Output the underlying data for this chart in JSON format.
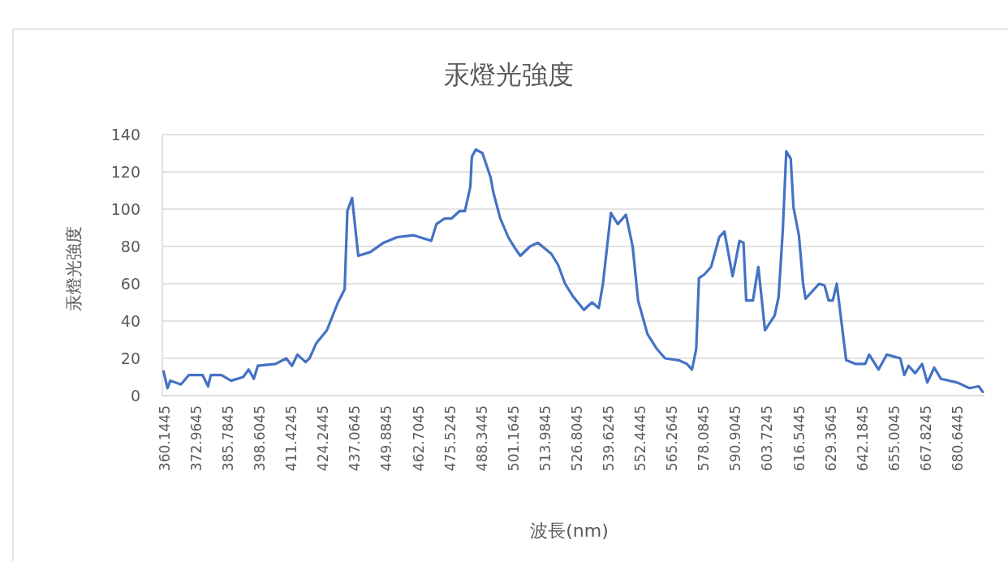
{
  "chart_data": {
    "type": "line",
    "title": "汞燈光強度",
    "xlabel": "波長(nm)",
    "ylabel": "汞燈光強度",
    "xlim": [
      359.2,
      691.5
    ],
    "xticks": [
      360.1445,
      372.9645,
      385.7845,
      398.6045,
      411.4245,
      424.2445,
      437.0645,
      449.8845,
      462.7045,
      475.5245,
      488.3445,
      501.1645,
      513.9845,
      526.8045,
      539.6245,
      552.4445,
      565.2645,
      578.0845,
      590.9045,
      603.7245,
      616.5445,
      629.3645,
      642.1845,
      655.0045,
      667.8245,
      680.6445
    ],
    "ylim": [
      0,
      140
    ],
    "yticks": [
      0,
      20,
      40,
      60,
      80,
      100,
      120,
      140
    ],
    "grid": "y",
    "series": [
      {
        "color": "#4472c4",
        "x": [
          359.7,
          361.3,
          362.4,
          366.7,
          369.9,
          375.5,
          377.7,
          378.8,
          383.1,
          387.0,
          391.9,
          394.1,
          396.2,
          397.8,
          405.0,
          409.3,
          411.6,
          413.8,
          417.1,
          418.7,
          421.4,
          425.7,
          430.2,
          432.9,
          434.0,
          435.9,
          438.4,
          443.3,
          448.6,
          454.2,
          460.8,
          467.9,
          470.0,
          473.3,
          476.1,
          479.4,
          481.5,
          483.7,
          484.3,
          485.9,
          488.6,
          491.9,
          493.0,
          495.8,
          499.0,
          501.8,
          503.9,
          507.8,
          511.0,
          516.5,
          519.2,
          522.0,
          525.3,
          529.6,
          532.9,
          535.6,
          537.3,
          540.5,
          543.3,
          546.6,
          549.3,
          551.5,
          555.3,
          559.1,
          562.4,
          567.9,
          571.2,
          573.3,
          575.0,
          576.1,
          578.3,
          581.0,
          584.3,
          586.4,
          589.7,
          592.5,
          594.1,
          595.2,
          597.9,
          600.1,
          602.8,
          606.7,
          608.3,
          610.0,
          611.4,
          613.2,
          614.3,
          616.5,
          618.2,
          619.2,
          624.7,
          626.9,
          628.5,
          630.2,
          631.8,
          635.6,
          639.5,
          643.3,
          644.9,
          648.7,
          652.0,
          657.5,
          659.1,
          660.8,
          663.5,
          666.3,
          668.4,
          671.2,
          673.9,
          680.5,
          685.4,
          689.2,
          690.8
        ],
        "values": [
          13,
          4,
          8,
          6,
          11,
          11,
          5,
          11,
          11,
          8,
          10,
          14,
          9,
          16,
          17,
          20,
          16,
          22,
          18,
          20,
          28,
          35,
          50,
          57,
          99,
          106,
          75,
          77,
          82,
          85,
          86,
          83,
          92,
          95,
          95,
          99,
          99,
          112,
          128,
          132,
          130,
          117,
          109,
          95,
          85,
          79,
          75,
          80,
          82,
          76,
          70,
          60,
          53,
          46,
          50,
          47,
          60,
          98,
          92,
          97,
          80,
          51,
          33,
          25,
          20,
          19,
          17,
          14,
          25,
          63,
          65,
          69,
          85,
          88,
          64,
          83,
          82,
          51,
          51,
          69,
          35,
          43,
          53,
          89,
          131,
          127,
          101,
          86,
          60,
          52,
          60,
          59,
          51,
          51,
          60,
          19,
          17,
          17,
          22,
          14,
          22,
          20,
          11,
          16,
          12,
          17,
          7,
          15,
          9,
          7,
          4,
          5,
          2
        ]
      }
    ]
  }
}
